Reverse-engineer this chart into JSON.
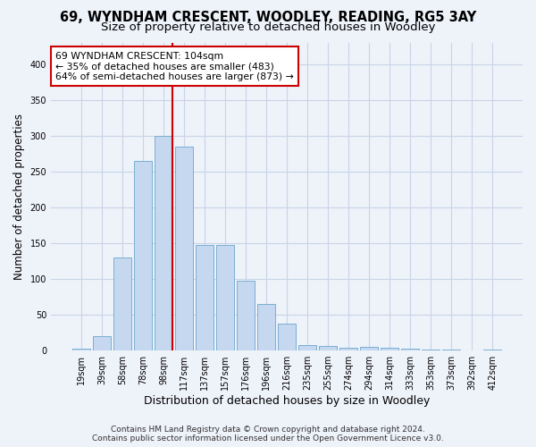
{
  "title_line1": "69, WYNDHAM CRESCENT, WOODLEY, READING, RG5 3AY",
  "title_line2": "Size of property relative to detached houses in Woodley",
  "xlabel": "Distribution of detached houses by size in Woodley",
  "ylabel": "Number of detached properties",
  "categories": [
    "19sqm",
    "39sqm",
    "58sqm",
    "78sqm",
    "98sqm",
    "117sqm",
    "137sqm",
    "157sqm",
    "176sqm",
    "196sqm",
    "216sqm",
    "235sqm",
    "255sqm",
    "274sqm",
    "294sqm",
    "314sqm",
    "333sqm",
    "353sqm",
    "373sqm",
    "392sqm",
    "412sqm"
  ],
  "values": [
    2,
    20,
    130,
    265,
    300,
    285,
    147,
    147,
    98,
    65,
    38,
    8,
    6,
    4,
    5,
    4,
    2,
    1,
    1,
    0,
    1
  ],
  "bar_color": "#c5d8ef",
  "bar_edge_color": "#7aafd4",
  "grid_color": "#c8d4e8",
  "vline_color": "#cc0000",
  "annotation_text": "69 WYNDHAM CRESCENT: 104sqm\n← 35% of detached houses are smaller (483)\n64% of semi-detached houses are larger (873) →",
  "annotation_box_color": "#ffffff",
  "annotation_box_edge": "#cc0000",
  "footer_line1": "Contains HM Land Registry data © Crown copyright and database right 2024.",
  "footer_line2": "Contains public sector information licensed under the Open Government Licence v3.0.",
  "ylim": [
    0,
    430
  ],
  "yticks": [
    0,
    50,
    100,
    150,
    200,
    250,
    300,
    350,
    400
  ],
  "background_color": "#eef2f9",
  "title_fontsize": 10.5,
  "subtitle_fontsize": 9.5,
  "tick_fontsize": 7,
  "ylabel_fontsize": 8.5,
  "xlabel_fontsize": 9,
  "footer_fontsize": 6.5,
  "annotation_fontsize": 7.8
}
